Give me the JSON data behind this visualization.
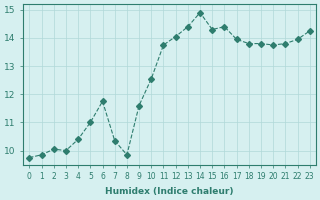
{
  "x": [
    0,
    1,
    2,
    3,
    4,
    5,
    6,
    7,
    8,
    9,
    10,
    11,
    12,
    13,
    14,
    15,
    16,
    17,
    18,
    19,
    20,
    21,
    22,
    23
  ],
  "y": [
    9.75,
    9.85,
    10.05,
    10.0,
    10.4,
    11.0,
    11.75,
    10.35,
    9.85,
    11.6,
    12.55,
    13.75,
    14.05,
    14.4,
    14.9,
    14.3,
    14.4,
    13.95,
    13.8,
    13.8,
    13.75,
    13.8,
    13.95,
    14.25
  ],
  "xlim": [
    -0.5,
    23.5
  ],
  "ylim": [
    9.5,
    15.2
  ],
  "yticks": [
    10,
    11,
    12,
    13,
    14,
    15
  ],
  "xticks": [
    0,
    1,
    2,
    3,
    4,
    5,
    6,
    7,
    8,
    9,
    10,
    11,
    12,
    13,
    14,
    15,
    16,
    17,
    18,
    19,
    20,
    21,
    22,
    23
  ],
  "xlabel": "Humidex (Indice chaleur)",
  "line_color": "#2e7d6e",
  "marker": "D",
  "marker_size": 3,
  "line_width": 0.8,
  "bg_color": "#d6f0f0",
  "grid_color": "#b0d8d8",
  "title": ""
}
